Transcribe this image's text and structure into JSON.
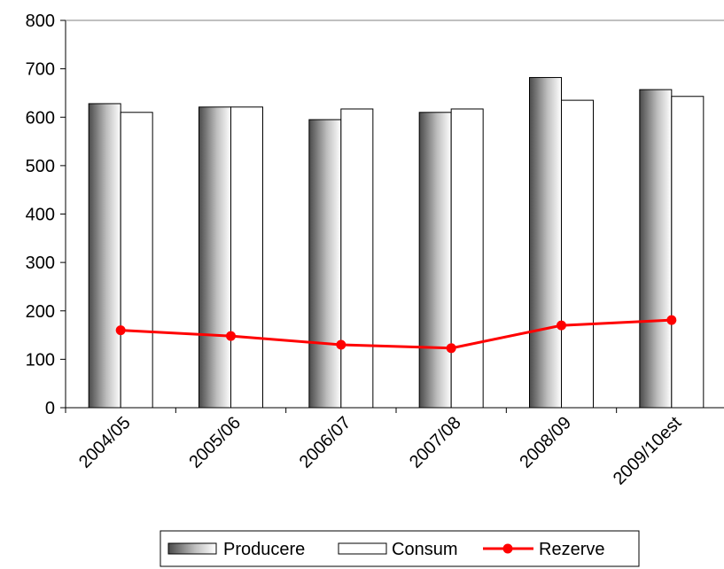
{
  "chart_data": {
    "type": "bar",
    "categories": [
      "2004/05",
      "2005/06",
      "2006/07",
      "2007/08",
      "2008/09",
      "2009/10est"
    ],
    "series": [
      {
        "name": "Producere",
        "type": "bar",
        "values": [
          628,
          621,
          595,
          610,
          682,
          657
        ]
      },
      {
        "name": "Consum",
        "type": "bar",
        "values": [
          610,
          621,
          617,
          617,
          635,
          643
        ]
      },
      {
        "name": "Rezerve",
        "type": "line",
        "values": [
          160,
          148,
          130,
          123,
          170,
          181
        ],
        "color": "#ff0000"
      }
    ],
    "yticks": [
      "0",
      "100",
      "200",
      "300",
      "400",
      "500",
      "600",
      "700",
      "800"
    ],
    "ylim": [
      0,
      800
    ],
    "legend_position": "bottom",
    "grid": false
  }
}
